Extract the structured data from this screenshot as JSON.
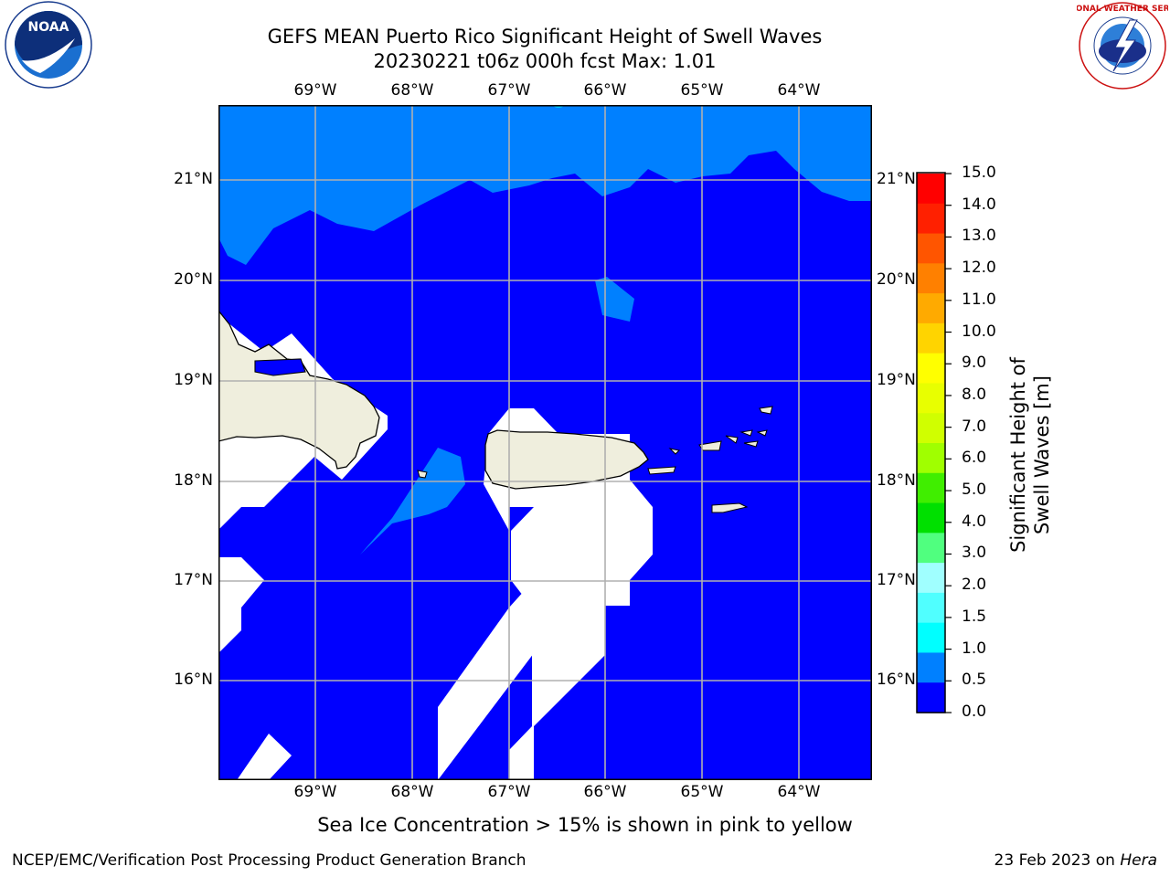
{
  "title": {
    "line1": "GEFS MEAN Puerto Rico Significant Height of Swell Waves",
    "line2": "20230221 t06z 000h fcst   Max: 1.01"
  },
  "logos": {
    "left": {
      "name": "NOAA",
      "ring_text": "NATIONAL OCEANIC AND ATMOSPHERIC ADMINISTRATION · U.S. DEPARTMENT OF COMMERCE"
    },
    "right": {
      "name": "NATIONAL WEATHER SERVICE"
    }
  },
  "map": {
    "lon_ticks": [
      "69°W",
      "68°W",
      "67°W",
      "66°W",
      "65°W",
      "64°W"
    ],
    "lat_ticks": [
      "21°N",
      "20°N",
      "19°N",
      "18°N",
      "17°N",
      "16°N"
    ],
    "colors": {
      "ocean_low": "#0000ff",
      "ocean_mid": "#0080ff",
      "ocean_cyan": "#00c8ff",
      "land": "#efeedd",
      "grid": "#b0b0b0"
    }
  },
  "colorbar": {
    "label": "Significant Height of Swell Waves [m]",
    "ticks": [
      "15.0",
      "14.0",
      "13.0",
      "12.0",
      "11.0",
      "10.0",
      "9.0",
      "8.0",
      "7.0",
      "6.0",
      "5.0",
      "4.0",
      "3.0",
      "2.0",
      "1.5",
      "1.0",
      "0.5",
      "0.0"
    ],
    "bands": [
      "#ff0000",
      "#ff2000",
      "#ff5500",
      "#ff8000",
      "#ffaa00",
      "#ffd400",
      "#ffff00",
      "#e8ff00",
      "#d0ff00",
      "#a0ff00",
      "#40ee00",
      "#00e000",
      "#50ff7f",
      "#a0ffff",
      "#50ffff",
      "#00ffff",
      "#0080ff",
      "#0000ff"
    ]
  },
  "caption": "Sea Ice Concentration > 15% is shown in pink to yellow",
  "footer": {
    "left": "NCEP/EMC/Verification Post Processing Product Generation Branch",
    "right_date": "23 Feb 2023 on ",
    "right_host": "Hera"
  }
}
